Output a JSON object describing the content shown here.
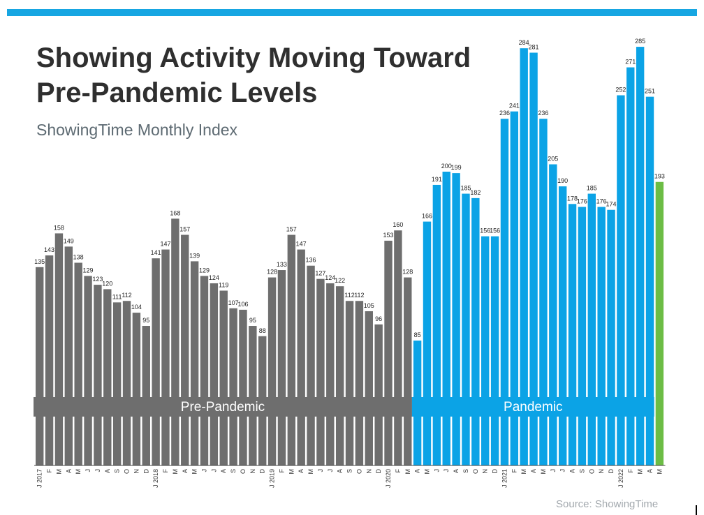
{
  "header": {
    "title": "Showing Activity Moving Toward\nPre-Pandemic Levels",
    "subtitle": "ShowingTime Monthly Index"
  },
  "footer": {
    "source": "Source: ShowingTime"
  },
  "colors": {
    "accent_bar": "#17a6e2",
    "pre_pandemic": "#6e6e6e",
    "pandemic": "#0ba3e6",
    "latest": "#6cbd45"
  },
  "chart_data": {
    "type": "bar",
    "categories": [
      "J 2017",
      "F",
      "M",
      "A",
      "M",
      "J",
      "J",
      "A",
      "S",
      "O",
      "N",
      "D",
      "J 2018",
      "F",
      "M",
      "A",
      "M",
      "J",
      "J",
      "A",
      "S",
      "O",
      "N",
      "D",
      "J 2019",
      "F",
      "M",
      "A",
      "M",
      "J",
      "J",
      "A",
      "S",
      "O",
      "N",
      "D",
      "J 2020",
      "F",
      "M",
      "A",
      "M",
      "J",
      "J",
      "A",
      "S",
      "O",
      "N",
      "D",
      "J 2021",
      "F",
      "M",
      "A",
      "M",
      "J",
      "J",
      "A",
      "S",
      "O",
      "N",
      "D",
      "J 2022",
      "F",
      "M",
      "A",
      "M"
    ],
    "values": [
      135,
      143,
      158,
      149,
      138,
      129,
      123,
      120,
      111,
      112,
      104,
      95,
      141,
      147,
      168,
      157,
      139,
      129,
      124,
      119,
      107,
      106,
      95,
      88,
      128,
      133,
      157,
      147,
      136,
      127,
      124,
      122,
      112,
      112,
      105,
      96,
      153,
      160,
      128,
      85,
      166,
      191,
      200,
      199,
      185,
      182,
      156,
      156,
      236,
      241,
      284,
      281,
      236,
      205,
      190,
      178,
      176,
      185,
      176,
      174,
      252,
      271,
      285,
      251,
      193
    ],
    "series_groups": [
      {
        "name": "Pre-Pandemic",
        "start": 0,
        "end": 38,
        "color": "#6e6e6e"
      },
      {
        "name": "Pandemic",
        "start": 39,
        "end": 63,
        "color": "#0ba3e6"
      },
      {
        "name": "",
        "start": 64,
        "end": 64,
        "color": "#6cbd45"
      }
    ],
    "bands": [
      "Pre-Pandemic",
      "Pandemic"
    ],
    "title": "Showing Activity Moving Toward Pre-Pandemic Levels",
    "subtitle": "ShowingTime Monthly Index",
    "ylim": [
      0,
      300
    ],
    "grid": false
  }
}
